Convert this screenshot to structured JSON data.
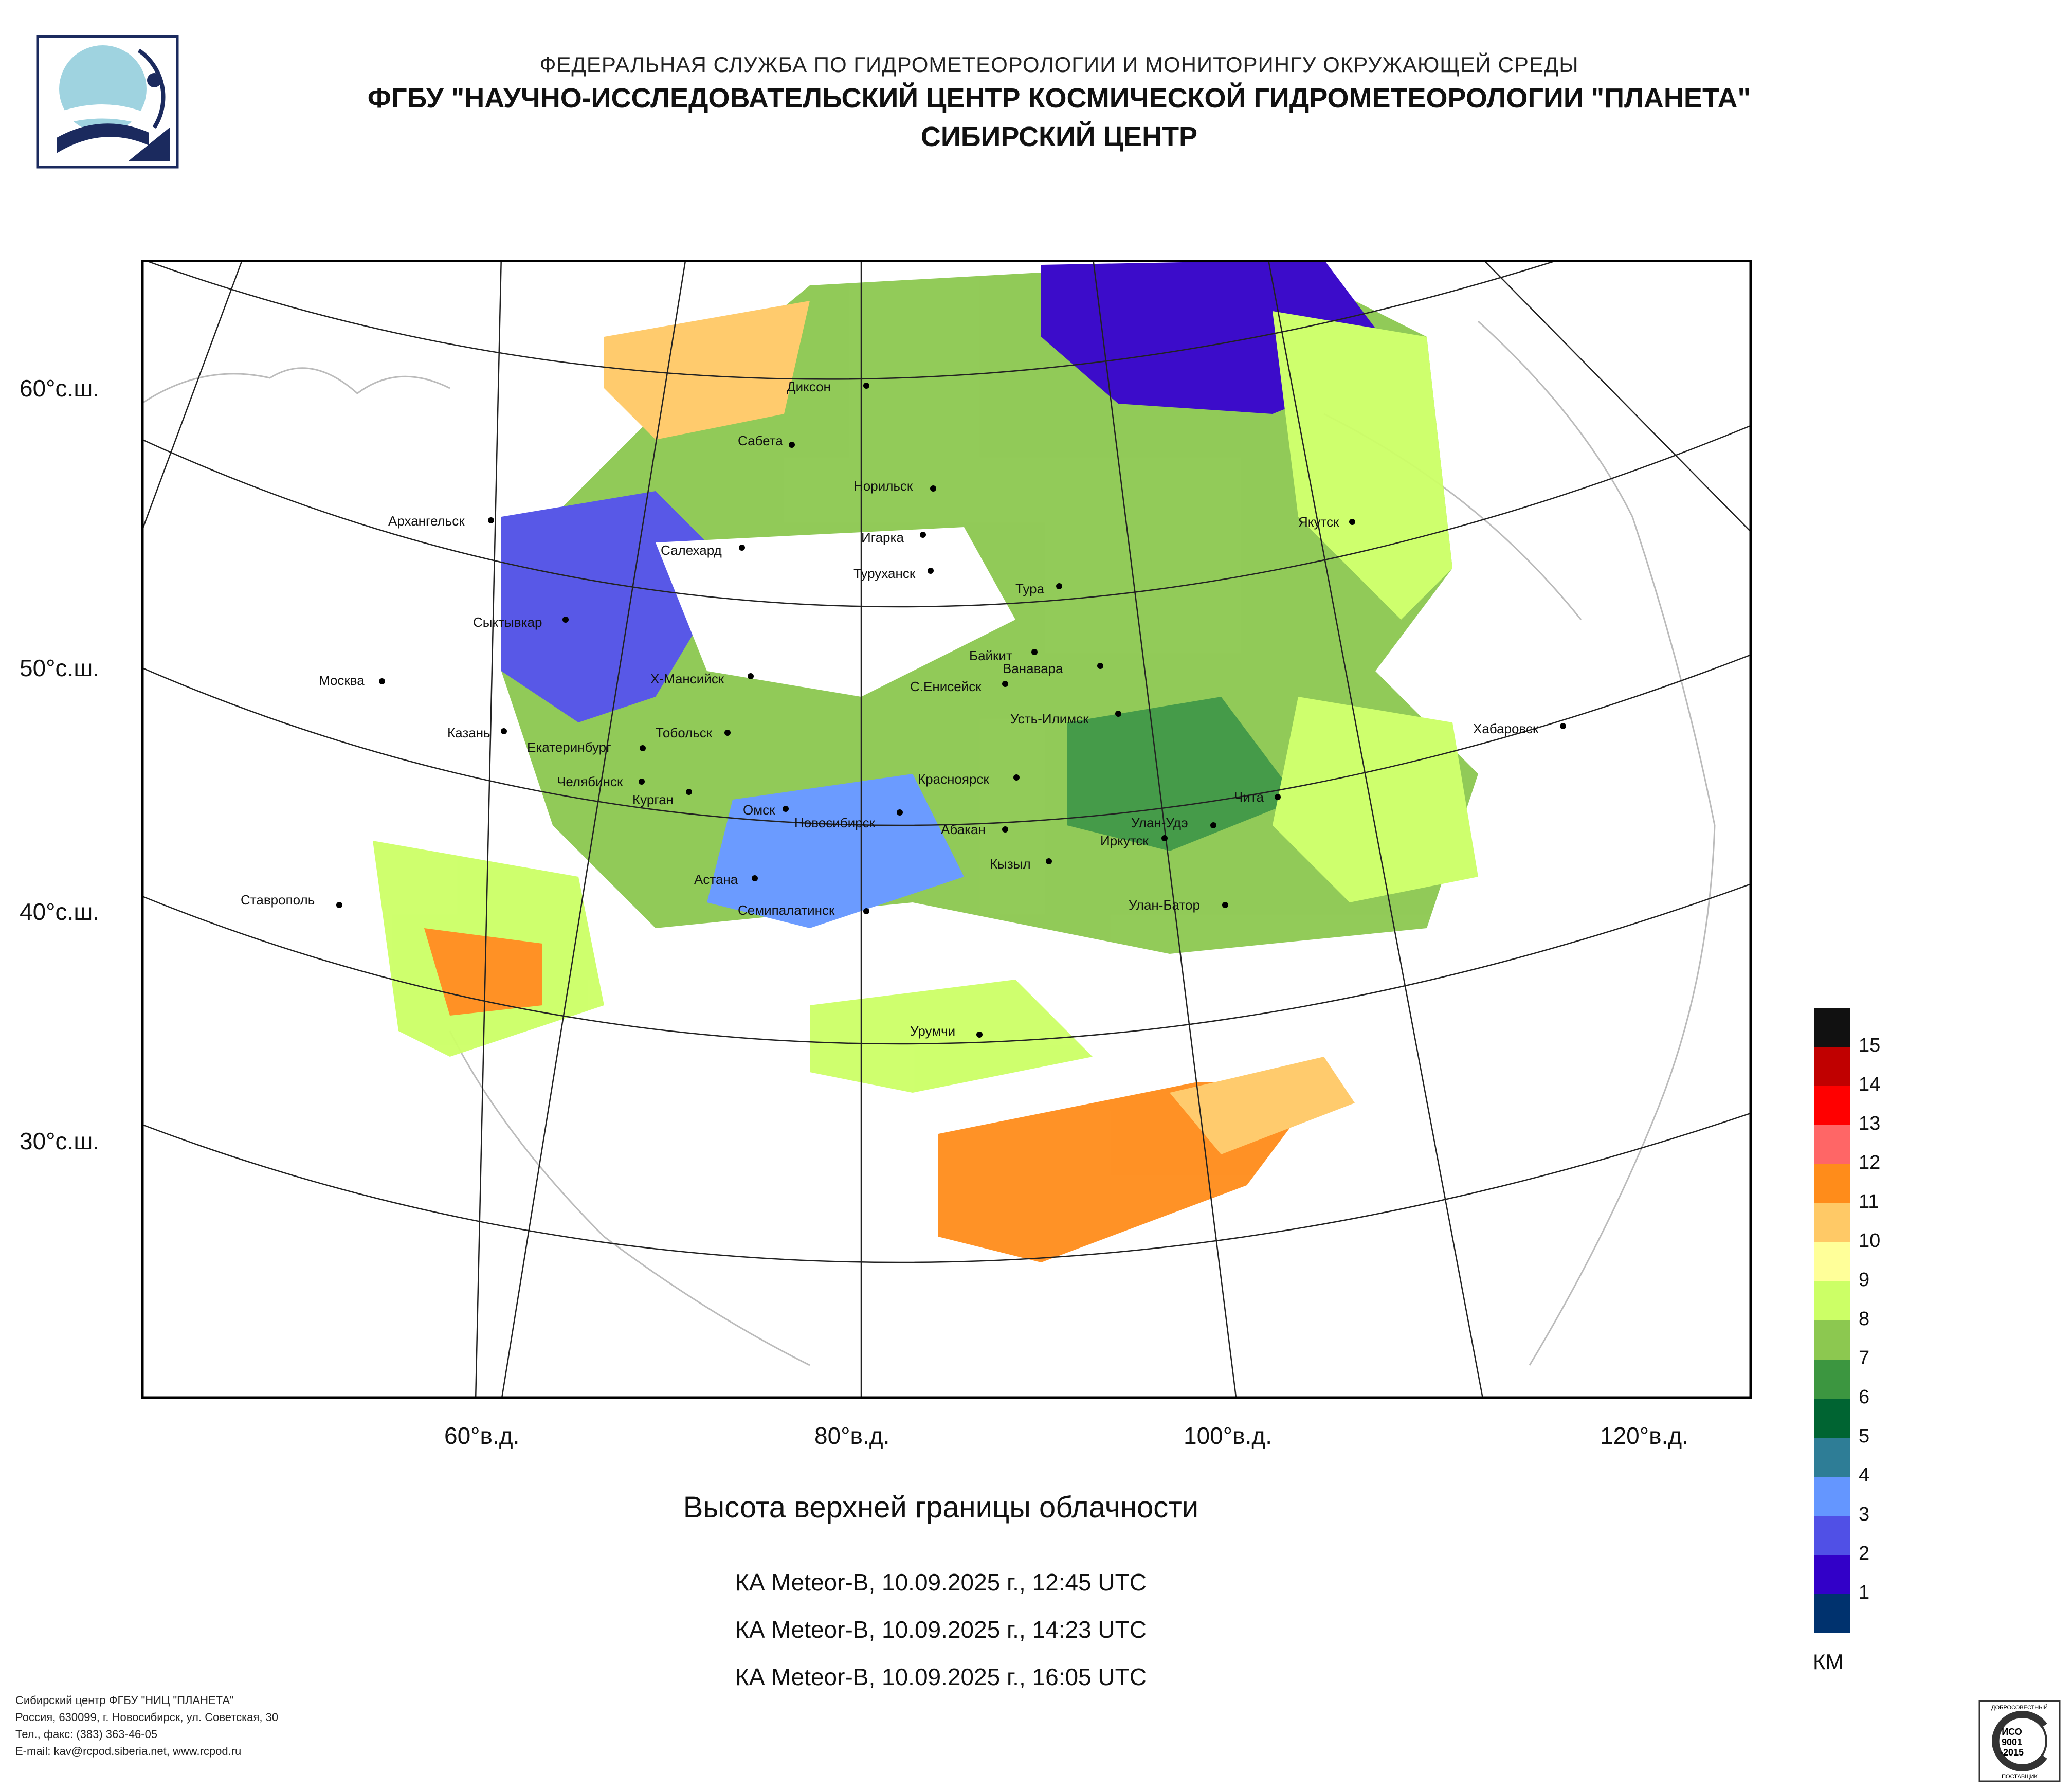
{
  "header": {
    "line1": "ФЕДЕРАЛЬНАЯ СЛУЖБА ПО ГИДРОМЕТЕОРОЛОГИИ И МОНИТОРИНГУ ОКРУЖАЮЩЕЙ СРЕДЫ",
    "line2": "ФГБУ \"НАУЧНО-ИССЛЕДОВАТЕЛЬСКИЙ ЦЕНТР КОСМИЧЕСКОЙ ГИДРОМЕТЕОРОЛОГИИ \"ПЛАНЕТА\"",
    "line3": "СИБИРСКИЙ ЦЕНТР"
  },
  "map": {
    "lat_labels": [
      "60°с.ш.",
      "50°с.ш.",
      "40°с.ш.",
      "30°с.ш."
    ],
    "lon_labels": [
      "60°в.д.",
      "80°в.д.",
      "100°в.д.",
      "120°в.д."
    ],
    "cities": [
      "Диксон",
      "Сабета",
      "Норильск",
      "Архангельск",
      "Салехард",
      "Игарка",
      "Туруханск",
      "Якутск",
      "Тура",
      "Сыктывкар",
      "Байкит",
      "Ванавара",
      "Москва",
      "Х-Мансийск",
      "С.Енисейск",
      "Усть-Илимск",
      "Казань",
      "Екатеринбург",
      "Тобольск",
      "Хабаровск",
      "Челябинск",
      "Курган",
      "Красноярск",
      "Чита",
      "Омск",
      "Новосибирск",
      "Абакан",
      "Улан-Удэ",
      "Иркутск",
      "Кызыл",
      "Астана",
      "Ставрополь",
      "Семипалатинск",
      "Улан-Батор",
      "Урумчи"
    ]
  },
  "product": {
    "title": "Высота верхней границы облачности",
    "passes": [
      "КА Meteor-В, 10.09.2025 г., 12:45 UTC",
      "КА Meteor-В, 10.09.2025 г., 14:23 UTC",
      "КА Meteor-В, 10.09.2025 г., 16:05 UTC"
    ]
  },
  "legend": {
    "unit": "КМ",
    "levels": [
      "15",
      "14",
      "13",
      "12",
      "11",
      "10",
      "9",
      "8",
      "7",
      "6",
      "5",
      "4",
      "3",
      "2",
      "1"
    ],
    "colors": [
      "#111111",
      "#c00000",
      "#ff0000",
      "#ff6666",
      "#ff8c1a",
      "#ffc966",
      "#ffff99",
      "#ccff66",
      "#8cc850",
      "#3c9640",
      "#006432",
      "#2e7d96",
      "#6496ff",
      "#5050e6",
      "#3200c8",
      "#00326e"
    ]
  },
  "footer": {
    "lines": [
      "Сибирский центр ФГБУ \"НИЦ \"ПЛАНЕТА\"",
      "Россия, 630099, г. Новосибирск, ул. Советская, 30",
      "Тел., факс: (383) 363-46-05",
      "E-mail: kav@rcpod.siberia.net, www.rcpod.ru"
    ]
  },
  "cert": {
    "top": "ДОБРОСОВЕСТНЫЙ",
    "line1": "ИСО",
    "line2": "9001",
    "line3": "-2015",
    "bottom": "ПОСТАВЩИК"
  }
}
